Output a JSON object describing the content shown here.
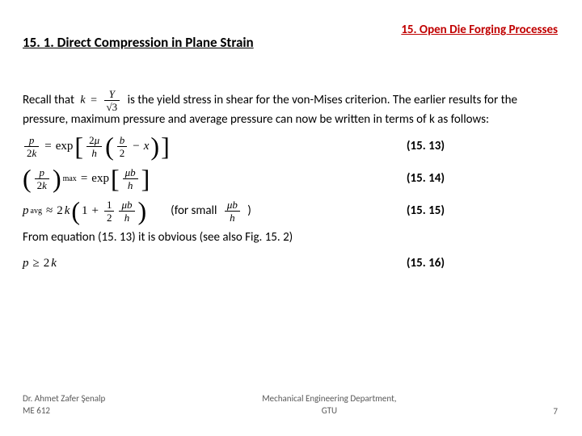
{
  "header": {
    "subsection": "15. 1. Direct Compression in Plane Strain",
    "chapter": "15. Open Die Forging Processes",
    "chapter_color": "#c00000"
  },
  "body": {
    "recall_pre": "Recall that",
    "recall_post": "is the yield stress in shear for the von-Mises criterion. The earlier results for the pressure, maximum pressure and average pressure can now be written in terms of k as follows:",
    "for_small_pre": "(for small",
    "for_small_post": ")",
    "obvious": "From equation (15. 13) it is obvious (see also Fig. 15. 2)"
  },
  "eqnums": {
    "e1": "(15. 13)",
    "e2": "(15. 14)",
    "e3": "(15. 15)",
    "e4": "(15. 16)"
  },
  "footer": {
    "author": "Dr. Ahmet Zafer Şenalp",
    "course": "ME 612",
    "dept": "Mechanical Engineering Department,",
    "uni": "GTU",
    "page": "7"
  },
  "style": {
    "body_fontsize": 15,
    "footer_fontsize": 11,
    "footer_color": "#595959",
    "background": "#ffffff"
  }
}
